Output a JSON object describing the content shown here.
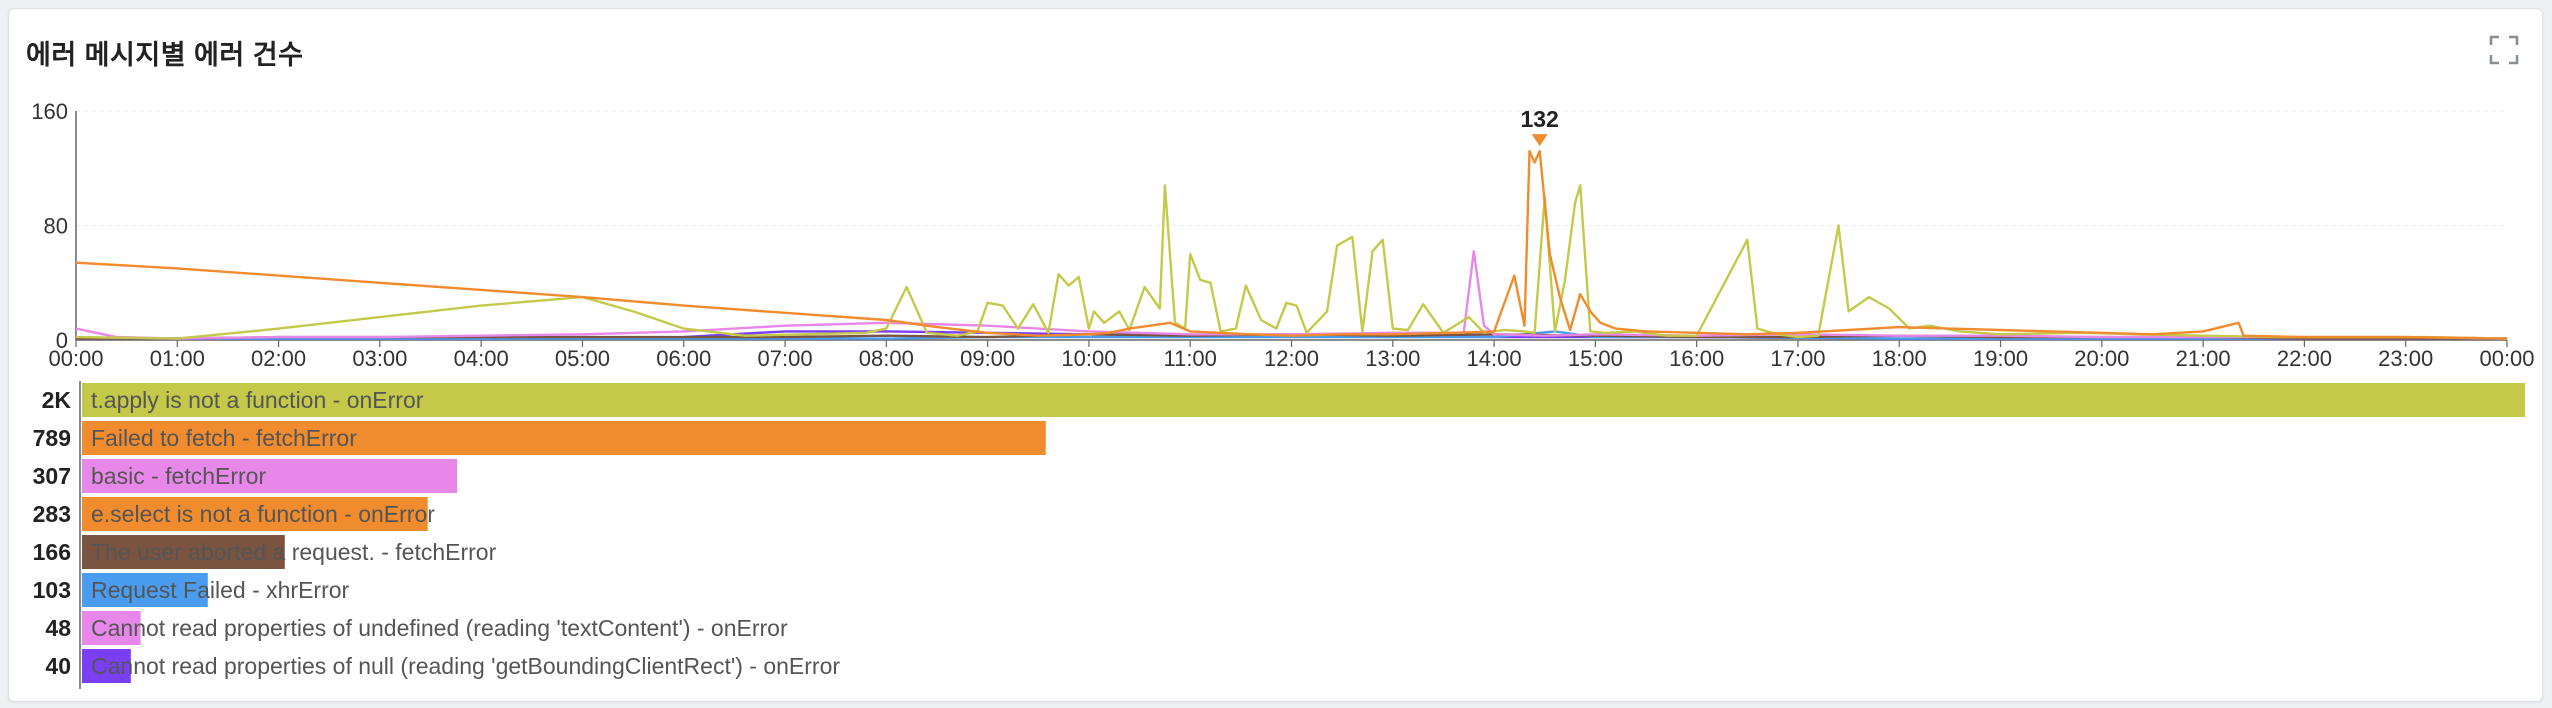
{
  "panel": {
    "title": "에러 메시지별 에러 건수",
    "expand_icon": "fullscreen-expand-icon"
  },
  "chart_data": [
    {
      "type": "line",
      "title": "",
      "xlabel": "",
      "ylabel": "",
      "ylim": [
        0,
        160
      ],
      "y_ticks": [
        "160",
        "80",
        "0"
      ],
      "x_ticks": [
        "00:00",
        "01:00",
        "02:00",
        "03:00",
        "04:00",
        "05:00",
        "06:00",
        "07:00",
        "08:00",
        "09:00",
        "10:00",
        "11:00",
        "12:00",
        "13:00",
        "14:00",
        "15:00",
        "16:00",
        "17:00",
        "18:00",
        "19:00",
        "20:00",
        "21:00",
        "22:00",
        "23:00",
        "00:00"
      ],
      "grid": true,
      "peak_label": "132",
      "peak_color": "#f08c2e",
      "series": [
        {
          "color": "#c5c94a",
          "points": [
            [
              0.0,
              2
            ],
            [
              1.0,
              1
            ],
            [
              2.0,
              8
            ],
            [
              3.0,
              16
            ],
            [
              4.0,
              24
            ],
            [
              5.0,
              30
            ],
            [
              5.5,
              20
            ],
            [
              6.0,
              8
            ],
            [
              6.6,
              3
            ],
            [
              7.2,
              4
            ],
            [
              7.8,
              5
            ],
            [
              8.0,
              8
            ],
            [
              8.2,
              37
            ],
            [
              8.4,
              5
            ],
            [
              8.7,
              3
            ],
            [
              8.9,
              6
            ],
            [
              9.0,
              26
            ],
            [
              9.15,
              24
            ],
            [
              9.3,
              8
            ],
            [
              9.45,
              25
            ],
            [
              9.6,
              5
            ],
            [
              9.7,
              46
            ],
            [
              9.8,
              38
            ],
            [
              9.9,
              44
            ],
            [
              10.0,
              8
            ],
            [
              10.05,
              20
            ],
            [
              10.15,
              12
            ],
            [
              10.3,
              20
            ],
            [
              10.4,
              7
            ],
            [
              10.55,
              37
            ],
            [
              10.7,
              22
            ],
            [
              10.75,
              108
            ],
            [
              10.85,
              12
            ],
            [
              10.95,
              8
            ],
            [
              11.0,
              60
            ],
            [
              11.1,
              42
            ],
            [
              11.2,
              40
            ],
            [
              11.3,
              6
            ],
            [
              11.45,
              8
            ],
            [
              11.55,
              38
            ],
            [
              11.7,
              14
            ],
            [
              11.85,
              8
            ],
            [
              11.95,
              26
            ],
            [
              12.05,
              24
            ],
            [
              12.15,
              5
            ],
            [
              12.35,
              20
            ],
            [
              12.45,
              66
            ],
            [
              12.6,
              72
            ],
            [
              12.7,
              6
            ],
            [
              12.8,
              62
            ],
            [
              12.9,
              70
            ],
            [
              13.0,
              8
            ],
            [
              13.15,
              7
            ],
            [
              13.3,
              25
            ],
            [
              13.5,
              5
            ],
            [
              13.75,
              16
            ],
            [
              13.9,
              5
            ],
            [
              14.1,
              7
            ],
            [
              14.3,
              6
            ],
            [
              14.4,
              5
            ],
            [
              14.5,
              100
            ],
            [
              14.6,
              6
            ],
            [
              14.7,
              42
            ],
            [
              14.8,
              96
            ],
            [
              14.85,
              108
            ],
            [
              14.95,
              6
            ],
            [
              15.1,
              5
            ],
            [
              15.4,
              6
            ],
            [
              15.7,
              3
            ],
            [
              16.0,
              3
            ],
            [
              16.5,
              70
            ],
            [
              16.6,
              8
            ],
            [
              16.8,
              4
            ],
            [
              17.0,
              2
            ],
            [
              17.2,
              3
            ],
            [
              17.4,
              80
            ],
            [
              17.5,
              20
            ],
            [
              17.7,
              30
            ],
            [
              17.9,
              22
            ],
            [
              18.1,
              8
            ],
            [
              18.3,
              10
            ],
            [
              18.6,
              6
            ],
            [
              19.0,
              4
            ],
            [
              19.8,
              5
            ],
            [
              20.4,
              4
            ],
            [
              21.0,
              3
            ],
            [
              21.8,
              2
            ],
            [
              22.6,
              2
            ],
            [
              23.2,
              2
            ],
            [
              24.0,
              1
            ]
          ]
        },
        {
          "color": "#f08c2e",
          "points": [
            [
              0.0,
              54
            ],
            [
              1.0,
              50
            ],
            [
              2.0,
              45
            ],
            [
              3.0,
              40
            ],
            [
              4.0,
              35
            ],
            [
              5.0,
              30
            ],
            [
              6.0,
              24
            ],
            [
              7.0,
              19
            ],
            [
              8.0,
              14
            ],
            [
              8.5,
              9
            ],
            [
              9.0,
              5
            ],
            [
              9.5,
              3
            ],
            [
              10.0,
              4
            ],
            [
              10.2,
              5
            ],
            [
              10.4,
              8
            ],
            [
              10.8,
              12
            ],
            [
              11.0,
              6
            ],
            [
              11.6,
              4
            ],
            [
              12.0,
              3
            ],
            [
              12.5,
              4
            ],
            [
              13.0,
              4
            ],
            [
              13.6,
              5
            ],
            [
              14.0,
              6
            ],
            [
              14.2,
              45
            ],
            [
              14.3,
              10
            ],
            [
              14.35,
              132
            ],
            [
              14.4,
              124
            ],
            [
              14.45,
              132
            ],
            [
              14.55,
              60
            ],
            [
              14.65,
              30
            ],
            [
              14.75,
              7
            ],
            [
              14.85,
              32
            ],
            [
              14.95,
              20
            ],
            [
              15.05,
              12
            ],
            [
              15.2,
              8
            ],
            [
              15.5,
              6
            ],
            [
              16.0,
              5
            ],
            [
              16.5,
              4
            ],
            [
              17.0,
              5
            ],
            [
              17.5,
              7
            ],
            [
              18.0,
              9
            ],
            [
              18.5,
              8
            ],
            [
              19.0,
              7
            ],
            [
              19.5,
              6
            ],
            [
              20.0,
              5
            ],
            [
              20.5,
              4
            ],
            [
              21.0,
              6
            ],
            [
              21.35,
              12
            ],
            [
              21.4,
              3
            ],
            [
              22.0,
              2
            ],
            [
              23.0,
              2
            ],
            [
              24.0,
              1
            ]
          ]
        },
        {
          "color": "#e887ea",
          "points": [
            [
              0.0,
              8
            ],
            [
              0.2,
              5
            ],
            [
              0.4,
              2
            ],
            [
              1.0,
              1
            ],
            [
              2.0,
              2
            ],
            [
              3.0,
              2
            ],
            [
              4.0,
              3
            ],
            [
              5.0,
              4
            ],
            [
              6.0,
              6
            ],
            [
              7.0,
              10
            ],
            [
              8.0,
              12
            ],
            [
              9.0,
              10
            ],
            [
              10.0,
              6
            ],
            [
              11.0,
              4
            ],
            [
              12.0,
              4
            ],
            [
              13.0,
              5
            ],
            [
              13.7,
              5
            ],
            [
              13.8,
              62
            ],
            [
              13.9,
              10
            ],
            [
              14.0,
              4
            ],
            [
              14.5,
              3
            ],
            [
              15.0,
              4
            ],
            [
              16.0,
              3
            ],
            [
              17.0,
              4
            ],
            [
              18.0,
              3
            ],
            [
              19.0,
              3
            ],
            [
              20.0,
              2
            ],
            [
              21.0,
              2
            ],
            [
              22.0,
              2
            ],
            [
              23.0,
              2
            ],
            [
              24.0,
              1
            ]
          ]
        },
        {
          "color": "#7b5441",
          "points": [
            [
              0.0,
              1
            ],
            [
              1.0,
              1
            ],
            [
              2.0,
              2
            ],
            [
              3.0,
              2
            ],
            [
              4.0,
              2
            ],
            [
              5.0,
              2
            ],
            [
              6.0,
              2
            ],
            [
              7.0,
              2
            ],
            [
              8.0,
              3
            ],
            [
              9.0,
              2
            ],
            [
              10.0,
              4
            ],
            [
              11.0,
              3
            ],
            [
              12.0,
              4
            ],
            [
              13.0,
              3
            ],
            [
              14.0,
              4
            ],
            [
              15.0,
              3
            ],
            [
              16.0,
              2
            ],
            [
              17.0,
              2
            ],
            [
              18.0,
              3
            ],
            [
              19.0,
              2
            ],
            [
              20.0,
              2
            ],
            [
              21.0,
              2
            ],
            [
              22.0,
              1
            ],
            [
              23.0,
              1
            ],
            [
              24.0,
              1
            ]
          ]
        },
        {
          "color": "#4a9cf0",
          "points": [
            [
              0.0,
              1
            ],
            [
              2.0,
              1
            ],
            [
              4.0,
              1
            ],
            [
              6.0,
              1
            ],
            [
              8.0,
              1
            ],
            [
              9.0,
              2
            ],
            [
              10.0,
              2
            ],
            [
              11.0,
              2
            ],
            [
              12.0,
              2
            ],
            [
              13.0,
              2
            ],
            [
              14.0,
              2
            ],
            [
              14.6,
              6
            ],
            [
              15.0,
              2
            ],
            [
              16.0,
              2
            ],
            [
              18.0,
              1
            ],
            [
              20.0,
              1
            ],
            [
              22.0,
              1
            ],
            [
              24.0,
              1
            ]
          ]
        },
        {
          "color": "#7a3ef5",
          "points": [
            [
              0.0,
              1
            ],
            [
              2.0,
              1
            ],
            [
              4.0,
              1
            ],
            [
              6.0,
              2
            ],
            [
              7.0,
              6
            ],
            [
              8.0,
              6
            ],
            [
              9.0,
              5
            ],
            [
              10.0,
              4
            ],
            [
              11.0,
              3
            ],
            [
              12.0,
              3
            ],
            [
              13.0,
              3
            ],
            [
              14.0,
              2
            ],
            [
              15.0,
              2
            ],
            [
              16.0,
              2
            ],
            [
              18.0,
              1
            ],
            [
              20.0,
              1
            ],
            [
              22.0,
              1
            ],
            [
              24.0,
              1
            ]
          ]
        }
      ]
    },
    {
      "type": "bar",
      "orientation": "horizontal",
      "title": "",
      "max_value": 2000,
      "items": [
        {
          "value": 2000,
          "value_label": "2K",
          "category": "t.apply is not a function - onError",
          "color": "#c5c94a"
        },
        {
          "value": 789,
          "value_label": "789",
          "category": "Failed to fetch - fetchError",
          "color": "#f08c2e"
        },
        {
          "value": 307,
          "value_label": "307",
          "category": "basic - fetchError",
          "color": "#e887ea"
        },
        {
          "value": 283,
          "value_label": "283",
          "category": "e.select is not a function - onError",
          "color": "#f08c2e"
        },
        {
          "value": 166,
          "value_label": "166",
          "category": "The user aborted a request. - fetchError",
          "color": "#7b5441"
        },
        {
          "value": 103,
          "value_label": "103",
          "category": "Request Failed - xhrError",
          "color": "#4a9cf0"
        },
        {
          "value": 48,
          "value_label": "48",
          "category": "Cannot read properties of undefined (reading 'textContent') - onError",
          "color": "#e887ea"
        },
        {
          "value": 40,
          "value_label": "40",
          "category": "Cannot read properties of null (reading 'getBoundingClientRect') - onError",
          "color": "#7a3ef5"
        }
      ]
    }
  ]
}
